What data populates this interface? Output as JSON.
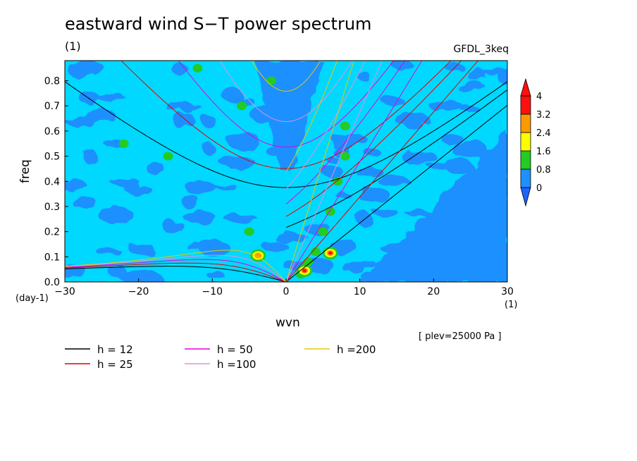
{
  "title": "eastward wind S−T power spectrum",
  "subtitle": "(1)",
  "model_label": "GFDL_3keq",
  "pressure_note": "[ plev=25000 Pa ]",
  "chart_data": {
    "type": "heatmap",
    "title": "eastward wind S−T power spectrum",
    "xlabel": "wvn",
    "ylabel": "freq",
    "x_unit": "(1)",
    "y_unit": "(day-1)",
    "xlim": [
      -30,
      30
    ],
    "ylim": [
      0,
      0.88
    ],
    "x_ticks": [
      -30,
      -20,
      -10,
      0,
      10,
      20,
      30
    ],
    "x_tick_labels": [
      "−30",
      "−20",
      "−10",
      "0",
      "10",
      "20",
      "30"
    ],
    "y_ticks": [
      0.0,
      0.1,
      0.2,
      0.3,
      0.4,
      0.5,
      0.6,
      0.7,
      0.8
    ],
    "y_tick_labels": [
      "0.0",
      "0.1",
      "0.2",
      "0.3",
      "0.4",
      "0.5",
      "0.6",
      "0.7",
      "0.8"
    ],
    "colorbar": {
      "levels": [
        0,
        0.8,
        1.6,
        2.4,
        3.2,
        4
      ],
      "labels": [
        "0",
        "0.8",
        "1.6",
        "2.4",
        "3.2",
        "4"
      ],
      "colors": [
        "#1e90ff",
        "#00d8ff",
        "#22cc22",
        "#ffff00",
        "#ff9900",
        "#ff1010",
        "#1e64ff"
      ]
    },
    "series": [
      {
        "name": "h = 12",
        "equivalent_depth": 12,
        "color": "#000000"
      },
      {
        "name": "h = 25",
        "equivalent_depth": 25,
        "color": "#e00000"
      },
      {
        "name": "h = 50",
        "equivalent_depth": 50,
        "color": "#e000e0"
      },
      {
        "name": "h =100",
        "equivalent_depth": 100,
        "color": "#e090e0"
      },
      {
        "name": "h =200",
        "equivalent_depth": 200,
        "color": "#e8c800"
      }
    ],
    "features": [
      {
        "label": "",
        "x": 2.5,
        "y": 0.045,
        "level": 4
      },
      {
        "label": "",
        "x": 6.0,
        "y": 0.115,
        "level": 4
      },
      {
        "label": "",
        "x": -3.8,
        "y": 0.105,
        "level": 3.2
      }
    ]
  }
}
